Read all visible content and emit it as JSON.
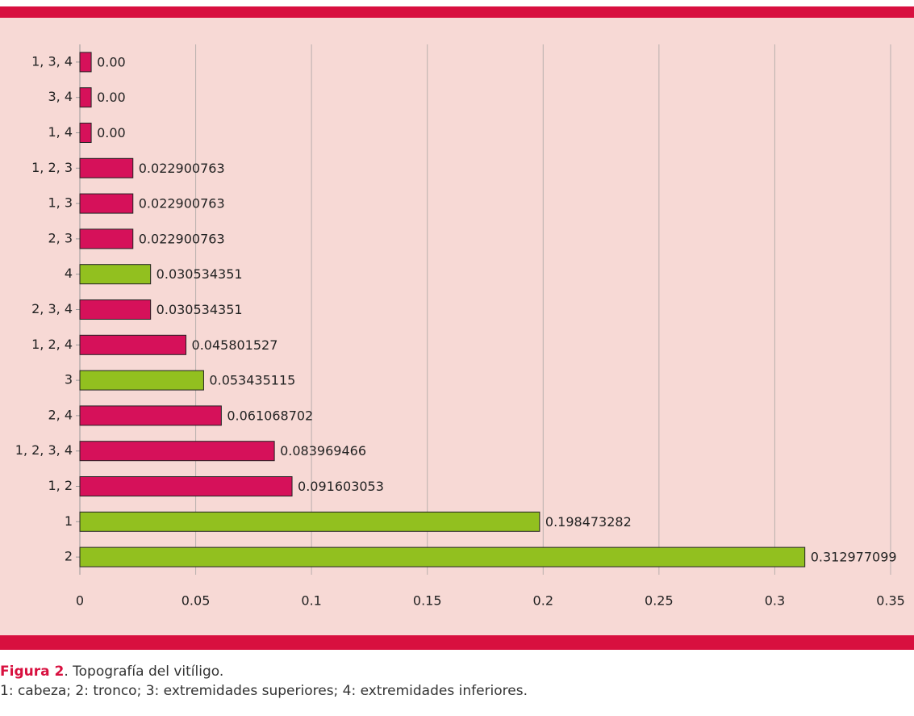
{
  "chart_data": {
    "type": "barh",
    "categories": [
      "1, 3, 4",
      "3, 4",
      "1, 4",
      "1, 2, 3",
      "1, 3",
      "2, 3",
      "4",
      "2, 3, 4",
      "1, 2, 4",
      "3",
      "2, 4",
      "1, 2, 3, 4",
      "1, 2",
      "1",
      "2"
    ],
    "values": [
      0.0049,
      0.0049,
      0.0049,
      0.022900763,
      0.022900763,
      0.022900763,
      0.030534351,
      0.030534351,
      0.045801527,
      0.053435115,
      0.061068702,
      0.083969466,
      0.091603053,
      0.198473282,
      0.312977099
    ],
    "value_labels": [
      "0.00",
      "0.00",
      "0.00",
      "0.022900763",
      "0.022900763",
      "0.022900763",
      "0.030534351",
      "0.030534351",
      "0.045801527",
      "0.053435115",
      "0.061068702",
      "0.083969466",
      "0.091603053",
      "0.198473282",
      "0.312977099"
    ],
    "colors": [
      "#d6115a",
      "#d6115a",
      "#d6115a",
      "#d6115a",
      "#d6115a",
      "#d6115a",
      "#92c01f",
      "#d6115a",
      "#d6115a",
      "#92c01f",
      "#d6115a",
      "#d6115a",
      "#d6115a",
      "#92c01f",
      "#92c01f"
    ],
    "xlim": [
      0,
      0.35
    ],
    "xticks": [
      0,
      0.05,
      0.1,
      0.15,
      0.2,
      0.25,
      0.3,
      0.35
    ],
    "grid": true
  },
  "caption": {
    "label": "Figura 2",
    "text": ". Topografía del vitíligo.",
    "legend": "1: cabeza; 2: tronco; 3: extremidades superiores; 4: extremidades inferiores."
  }
}
